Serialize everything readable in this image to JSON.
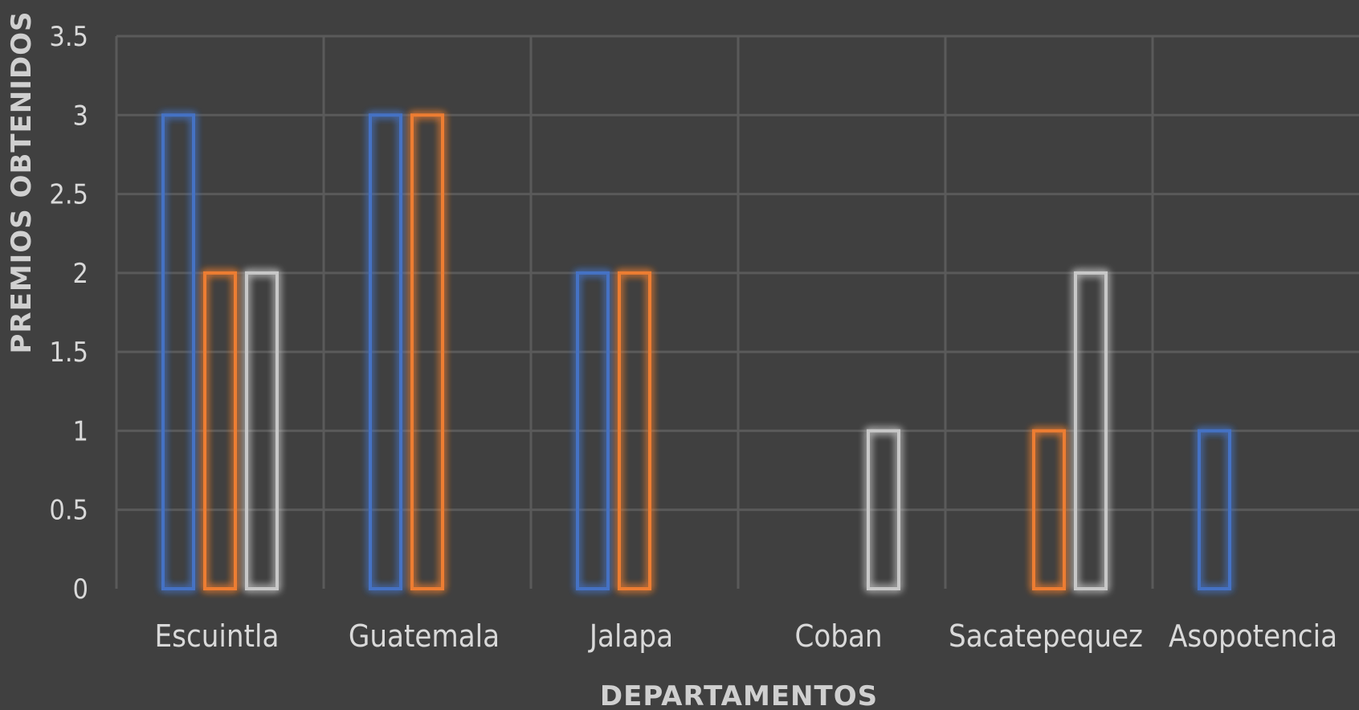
{
  "chart_data": {
    "type": "bar",
    "categories": [
      "Escuintla",
      "Guatemala",
      "Jalapa",
      "Coban",
      "Sacatepequez",
      "Asopotencia"
    ],
    "series": [
      {
        "color": "#4472C4",
        "values": [
          3,
          3,
          2,
          0,
          0,
          1
        ]
      },
      {
        "color": "#ED7D31",
        "values": [
          2,
          3,
          2,
          0,
          1,
          0
        ]
      },
      {
        "color": "#C8C8C8",
        "values": [
          2,
          0,
          0,
          1,
          2,
          0
        ]
      }
    ],
    "xlabel": "DEPARTAMENTOS",
    "ylabel": "PREMIOS OBTENIDOS",
    "ylim": [
      0,
      3.5
    ],
    "yticks": [
      "0",
      "0.5",
      "1",
      "1.5",
      "2",
      "2.5",
      "3",
      "3.5"
    ],
    "grid": true,
    "legend": "none",
    "style": "outlined bars with glow"
  }
}
